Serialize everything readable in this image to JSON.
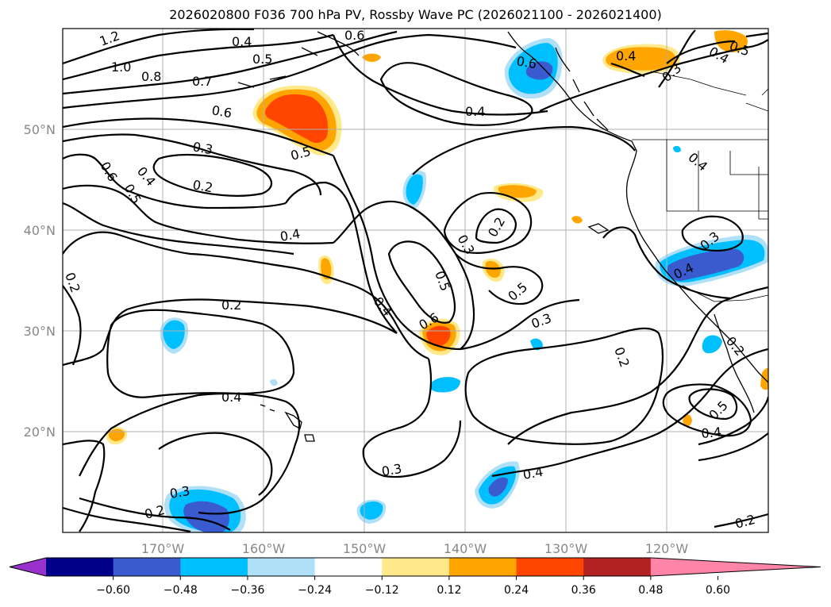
{
  "title": "2026020800 F036 700 hPa PV, Rossby Wave PC (2026021100 - 2026021400)",
  "map": {
    "lat_labels": [
      "50°N",
      "40°N",
      "30°N",
      "20°N"
    ],
    "lon_labels": [
      "170°W",
      "160°W",
      "150°W",
      "140°W",
      "130°W",
      "120°W"
    ]
  },
  "contour_labels": [
    "1.2",
    "1.0",
    "0.8",
    "0.7",
    "0.6",
    "0.5",
    "0.4",
    "0.6",
    "0.3",
    "0.2",
    "0.6",
    "0.5",
    "0.4",
    "0.2",
    "0.4",
    "0.2",
    "0.4",
    "0.6",
    "0.5",
    "0.4",
    "0.3",
    "0.2",
    "0.5",
    "0.3",
    "0.2",
    "0.4",
    "0.3",
    "0.4",
    "0.5",
    "0.4",
    "0.2",
    "0.3",
    "0.2",
    "0.4",
    "0.3",
    "0.4",
    "0.5",
    "0.3",
    "0.4",
    "0.5",
    "0.6",
    "0.4",
    "0.2"
  ],
  "colorbar": {
    "ticks": [
      "−0.60",
      "−0.48",
      "−0.36",
      "−0.24",
      "−0.12",
      "0.12",
      "0.24",
      "0.36",
      "0.48",
      "0.60"
    ],
    "colors": [
      "#9932cc",
      "#00008b",
      "#3a5bd0",
      "#00bfff",
      "#b0e0f8",
      "#ffffff",
      "#ffe98a",
      "#ffa500",
      "#ff4500",
      "#b22222",
      "#ff85a8"
    ]
  },
  "anomalies": [
    {
      "lat": 51,
      "lon": -157,
      "value": 0.45
    },
    {
      "lat": 58,
      "lon": -133,
      "value": -0.36
    },
    {
      "lat": 37,
      "lon": -117,
      "value": -0.45
    },
    {
      "lat": 29.5,
      "lon": -143,
      "value": 0.4
    },
    {
      "lat": 12.5,
      "lon": -164,
      "value": -0.4
    },
    {
      "lat": 14.5,
      "lon": -136,
      "value": -0.3
    }
  ]
}
